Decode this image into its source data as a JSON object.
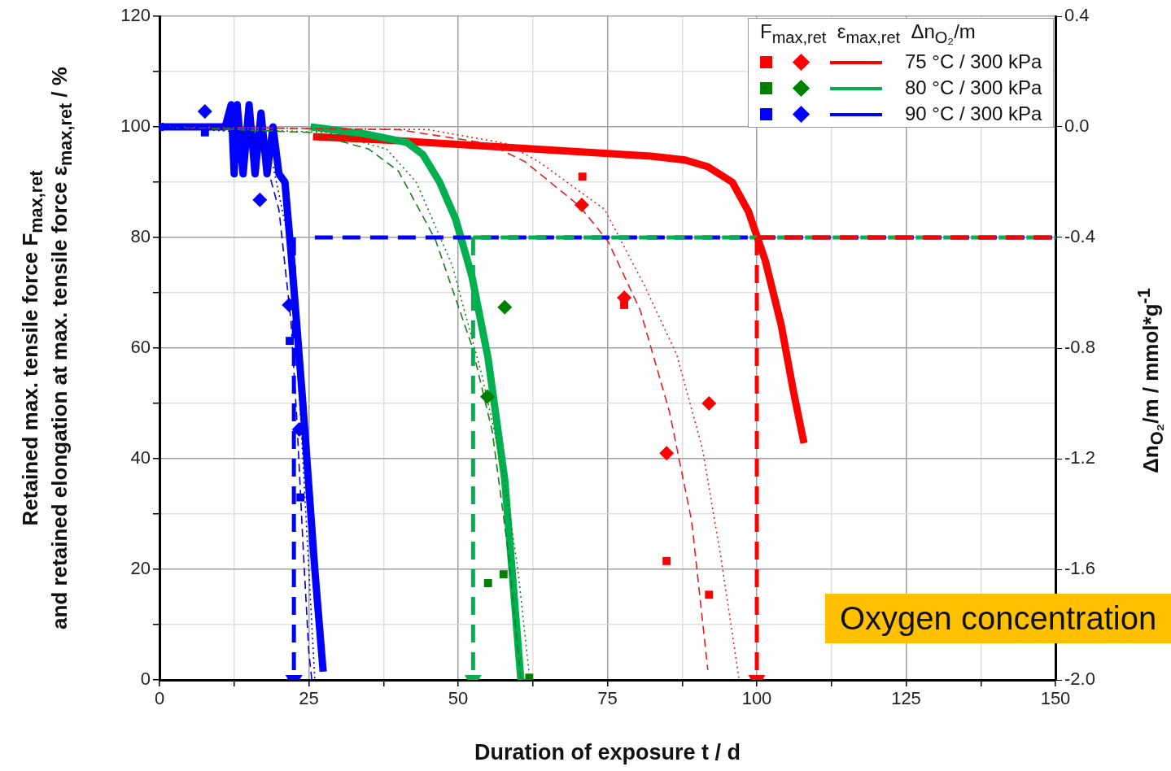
{
  "chart_data": {
    "type": "line",
    "xlabel": "Duration of exposure t / d",
    "ylabel": "Retained max. tensile force F$_{max,ret}$\nand retained elongation at max. tensile force ε$_{max,ret}$ / %",
    "y2label": "Δn$_{O₂}$/m  / mmol*g$^{-1}$",
    "legend_title": "F$_{max,ret}$  ε$_{max,ret}$  Δn$_{O₂}$/m",
    "legend": "top right",
    "grid": true,
    "xlim": [
      0,
      150
    ],
    "xticks": [
      0,
      {
        "value": 12.5,
        "label": null
      },
      25,
      {
        "value": 37.5,
        "label": null
      },
      50,
      {
        "value": 62.5,
        "label": null
      },
      75,
      {
        "value": 87.5,
        "label": null
      },
      100,
      {
        "value": 112.5,
        "label": null
      },
      125,
      {
        "value": 137.5,
        "label": null
      },
      150
    ],
    "ylim": [
      0,
      120
    ],
    "yticks": [
      0,
      {
        "value": 10,
        "label": null
      },
      20,
      {
        "value": 30,
        "label": null
      },
      40,
      {
        "value": 50,
        "label": null
      },
      60,
      {
        "value": 70,
        "label": null
      },
      80,
      {
        "value": 90,
        "label": null
      },
      100,
      {
        "value": 110,
        "label": null
      },
      120
    ],
    "y2lim": [
      -2,
      0.4
    ],
    "y2ticks": [
      {
        "value": -2,
        "label": "-2.0"
      },
      -1.6,
      -1.2,
      -0.8,
      -0.4,
      {
        "value": 0,
        "label": "0.0"
      },
      0.4
    ],
    "annotations": [
      "Oxygen concentration"
    ],
    "series": [
      {
        "type": "scatter",
        "marker": "square",
        "color": "#ff0000",
        "x": [
          70.8,
          77.8,
          84.9,
          92.0
        ],
        "values": [
          91,
          67.8,
          21.5,
          15.4
        ]
      },
      {
        "type": "scatter",
        "marker": "diamond",
        "color": "#ff0000",
        "x": [
          70.7,
          77.8,
          84.9,
          92.0
        ],
        "values": [
          85.9,
          69.1,
          41.0,
          50.0
        ]
      },
      {
        "type": "line",
        "name": "75 °C / 300 kPa",
        "axis": "y2",
        "line_style": "solid",
        "color": "#ff0000",
        "x": [
          25.7,
          40,
          55,
          70,
          82.3,
          88,
          91.8,
          95.9,
          98.6,
          101.4,
          104.1,
          106.1,
          107.9
        ],
        "values": [
          -0.035,
          -0.05,
          -0.07,
          -0.09,
          -0.106,
          -0.12,
          -0.144,
          -0.2,
          -0.306,
          -0.482,
          -0.718,
          -0.953,
          -1.144
        ]
      },
      {
        "type": "scatter",
        "marker": "square",
        "color": "#008000",
        "x": [
          55.0,
          57.6,
          61.9
        ],
        "values": [
          17.5,
          19.1,
          0.4
        ]
      },
      {
        "type": "scatter",
        "marker": "diamond",
        "color": "#008000",
        "x": [
          57.8,
          54.9
        ],
        "values": [
          67.4,
          51.2
        ]
      },
      {
        "type": "line",
        "name": "80 °C / 300 kPa",
        "axis": "y2",
        "line_style": "solid",
        "color": "#00b050",
        "x": [
          25.3,
          34.6,
          41.4,
          44.1,
          46.9,
          49.6,
          52.3,
          55.0,
          57.8,
          60.5
        ],
        "values": [
          0,
          -0.026,
          -0.056,
          -0.1,
          -0.2,
          -0.335,
          -0.54,
          -0.835,
          -1.276,
          -2.0
        ]
      },
      {
        "type": "scatter",
        "marker": "square",
        "color": "#0000ff",
        "x": [
          0,
          7.6,
          21.8,
          23.6
        ],
        "values": [
          100,
          99,
          61.3,
          33
        ]
      },
      {
        "type": "scatter",
        "marker": "diamond",
        "color": "#0000ff",
        "x": [
          7.6,
          16.8,
          21.7,
          23.4
        ],
        "values": [
          102.8,
          86.8,
          67.8,
          45.3
        ]
      },
      {
        "type": "line",
        "name": "90 °C / 300 kPa",
        "axis": "y2",
        "line_style": "solid",
        "color": "#0000ff",
        "x": [
          0,
          11,
          12,
          12.5,
          13,
          14,
          15,
          16,
          17,
          18,
          19,
          20,
          21,
          22,
          23,
          24,
          25,
          26,
          27.4
        ],
        "values": [
          0,
          0,
          0.08,
          -0.17,
          0.08,
          -0.17,
          0.08,
          -0.17,
          0.05,
          -0.17,
          0,
          -0.17,
          -0.2,
          -0.45,
          -0.72,
          -1.0,
          -1.3,
          -1.6,
          -1.97
        ]
      },
      {
        "type": "line",
        "line_style": "dashed",
        "color": "#e02020",
        "x": [
          0,
          40,
          55,
          61.2,
          70.3,
          75.1,
          80.5,
          85.4,
          89.1,
          91.8
        ],
        "values": [
          100,
          99.5,
          97,
          93.7,
          85.7,
          79.3,
          66.8,
          48.4,
          28.7,
          1.8
        ]
      },
      {
        "type": "line",
        "line_style": "dotted",
        "color": "#e02020",
        "x": [
          0,
          45,
          58,
          63.5,
          74.5,
          81.2,
          86.6,
          90.9,
          94.0,
          97.0
        ],
        "values": [
          100,
          99.5,
          97,
          93.7,
          85.1,
          71.3,
          58.8,
          41.8,
          22.1,
          0.4
        ]
      },
      {
        "type": "line",
        "line_style": "dashed",
        "color": "#1a7f1a",
        "x": [
          0,
          25,
          35,
          40.0,
          46.2,
          52.3,
          55.7,
          58.4,
          60.5
        ],
        "values": [
          100,
          99,
          96,
          92,
          79.6,
          60.4,
          45,
          23,
          0
        ]
      },
      {
        "type": "line",
        "line_style": "dotted",
        "color": "#1a7f1a",
        "x": [
          0,
          28,
          38,
          43,
          49,
          54,
          57.5,
          60,
          62
        ],
        "values": [
          100,
          99,
          96,
          90,
          75,
          55,
          38,
          20,
          0
        ]
      },
      {
        "type": "line",
        "line_style": "dashed",
        "color": "#0000cc",
        "x": [
          0,
          12,
          17,
          20,
          22,
          23,
          24,
          25,
          25.5
        ],
        "values": [
          100,
          100,
          97,
          85,
          65,
          47,
          25,
          5,
          0
        ]
      },
      {
        "type": "line",
        "line_style": "dotted",
        "color": "#0000cc",
        "x": [
          0,
          15,
          19,
          21.5,
          23,
          24,
          25,
          26
        ],
        "values": [
          100,
          99,
          93,
          80,
          60,
          40,
          20,
          0
        ]
      },
      {
        "type": "line",
        "line_style": "dashed",
        "color": "#0000ff",
        "x": [
          26,
          150
        ],
        "values": [
          80,
          80
        ]
      },
      {
        "type": "line",
        "line_style": "dashed",
        "color": "#00b050",
        "x": [
          52.5,
          150
        ],
        "values": [
          80,
          80
        ]
      },
      {
        "type": "line",
        "line_style": "dashed",
        "color": "#ff0000",
        "x": [
          100,
          150
        ],
        "values": [
          80,
          80
        ]
      },
      {
        "type": "line",
        "line_style": "dashed",
        "marker": "triangle",
        "color": "#0000ff",
        "x": [
          22.5,
          22.5
        ],
        "values": [
          80,
          0
        ]
      },
      {
        "type": "line",
        "line_style": "dashed",
        "marker": "triangle",
        "color": "#00b050",
        "x": [
          52.5,
          52.5
        ],
        "values": [
          80,
          0
        ]
      },
      {
        "type": "line",
        "line_style": "dashed",
        "marker": "triangle",
        "color": "#ff0000",
        "x": [
          100,
          100
        ],
        "values": [
          80,
          0
        ]
      }
    ]
  }
}
